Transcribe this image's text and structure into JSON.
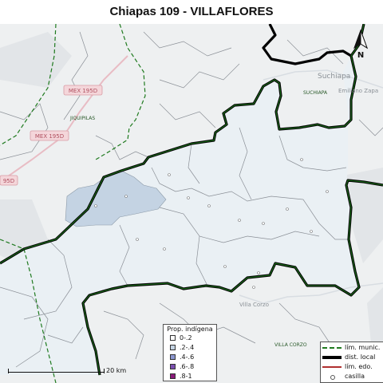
{
  "title": "Chiapas 109 - VILLAFLORES",
  "colors": {
    "district_fill": "#eaf0f4",
    "outside_fill": "#eef0f1",
    "indigenous_area": "#c4d3e3",
    "district_border": "#000000",
    "municipal_line": "#1f7a1f",
    "state_line": "#b03030"
  },
  "map_labels": {
    "mex195_a": "MEX 195D",
    "mex195_b": "MEX 195D",
    "mex195_c": "95D",
    "jiquipilas": "JIQUIPILAS",
    "suchiapa_small": "SUCHIAPA",
    "suchiapa": "Suchiapa",
    "emiliano": "Emiliano Zapa",
    "villa_corzo_town": "Villa Corzo",
    "villa_corzo_muni": "VILLA CORZO"
  },
  "north": "N",
  "scale": {
    "label": "20 km"
  },
  "legend_prop": {
    "title": "Prop. indígena",
    "items": [
      {
        "label": "0-.2",
        "color": "#ffffff"
      },
      {
        "label": ".2-.4",
        "color": "#c4d3e3"
      },
      {
        "label": ".4-.6",
        "color": "#8b96cf"
      },
      {
        "label": ".6-.8",
        "color": "#7b4fb0"
      },
      {
        "label": ".8-1",
        "color": "#8a1a7a"
      }
    ]
  },
  "legend_lines": {
    "municipal": "lím. munic.",
    "district": "dist. local",
    "state": "lím. edo.",
    "casilla": "casilla"
  }
}
